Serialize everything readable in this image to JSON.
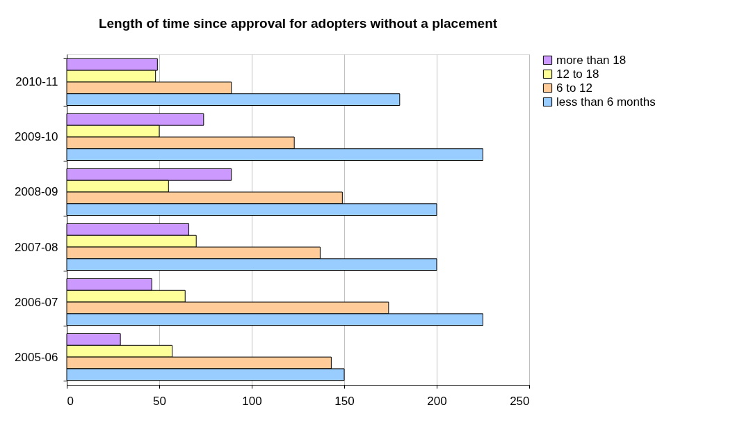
{
  "chart_data": {
    "type": "bar",
    "orientation": "horizontal",
    "title": "Length of time since approval for adopters without a placement",
    "categories": [
      "2010-11",
      "2009-10",
      "2008-09",
      "2007-08",
      "2006-07",
      "2005-06"
    ],
    "series": [
      {
        "name": "more than 18",
        "color": "#cc99ff",
        "values": [
          49,
          74,
          89,
          66,
          46,
          29
        ]
      },
      {
        "name": "12 to 18",
        "color": "#ffff99",
        "values": [
          48,
          50,
          55,
          70,
          64,
          57
        ]
      },
      {
        "name": "6 to 12",
        "color": "#ffcc99",
        "values": [
          89,
          123,
          149,
          137,
          174,
          143
        ]
      },
      {
        "name": "less than 6 months",
        "color": "#99ccff",
        "values": [
          180,
          225,
          200,
          200,
          225,
          150
        ]
      }
    ],
    "xlim": [
      0,
      250
    ],
    "xticks": [
      0,
      50,
      100,
      150,
      200,
      250
    ],
    "grid": "x",
    "legend": "right"
  }
}
